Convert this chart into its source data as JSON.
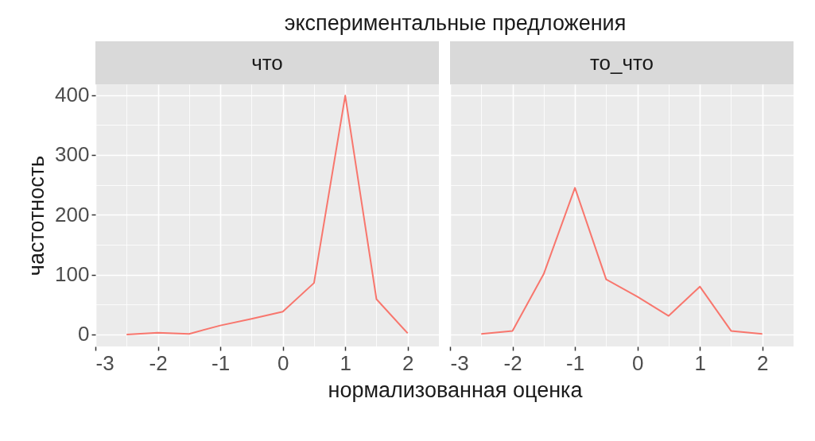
{
  "chart_data": [
    {
      "type": "line",
      "title": "экспериментальные предложения",
      "subtitle": "что",
      "xlabel": "нормализованная оценка",
      "ylabel": "частотность",
      "x": [
        -2.5,
        -2,
        -1.5,
        -1,
        -0.5,
        0,
        0.5,
        1,
        1.5,
        2
      ],
      "series": [
        {
          "color": "#f8766d",
          "values": [
            0,
            3,
            1,
            15,
            26,
            38,
            86,
            399,
            59,
            2
          ]
        }
      ],
      "xlim": [
        -3,
        2.5
      ],
      "xticks": [
        -3,
        {
          "value": -2.5,
          "label": null
        },
        -2,
        {
          "value": -1.5,
          "label": null
        },
        -1,
        {
          "value": -0.5,
          "label": null
        },
        0,
        {
          "value": 0.5,
          "label": null
        },
        1,
        {
          "value": 1.5,
          "label": null
        },
        2
      ],
      "ylim": [
        -20,
        418
      ],
      "yticks": [
        0,
        {
          "value": 50,
          "label": null
        },
        100,
        {
          "value": 150,
          "label": null
        },
        200,
        {
          "value": 250,
          "label": null
        },
        300,
        {
          "value": 350,
          "label": null
        },
        400
      ],
      "grid": true
    },
    {
      "type": "line",
      "subtitle": "то_что",
      "x": [
        -2.5,
        -2,
        -1.5,
        -1,
        -0.5,
        0,
        0.5,
        1,
        1.5,
        2
      ],
      "series": [
        {
          "color": "#f8766d",
          "values": [
            1,
            6,
            101,
            245,
            92,
            63,
            31,
            80,
            6,
            1
          ]
        }
      ],
      "xlim": [
        -3,
        2.5
      ],
      "xticks": [
        -3,
        {
          "value": -2.5,
          "label": null
        },
        -2,
        {
          "value": -1.5,
          "label": null
        },
        -1,
        {
          "value": -0.5,
          "label": null
        },
        0,
        {
          "value": 0.5,
          "label": null
        },
        1,
        {
          "value": 1.5,
          "label": null
        },
        2
      ],
      "ylim": [
        -20,
        418
      ],
      "yticks": [
        0,
        {
          "value": 50,
          "label": null
        },
        100,
        {
          "value": 150,
          "label": null
        },
        200,
        {
          "value": 250,
          "label": null
        },
        300,
        {
          "value": 350,
          "label": null
        },
        400
      ],
      "grid": true,
      "tick_labels": "x"
    }
  ]
}
